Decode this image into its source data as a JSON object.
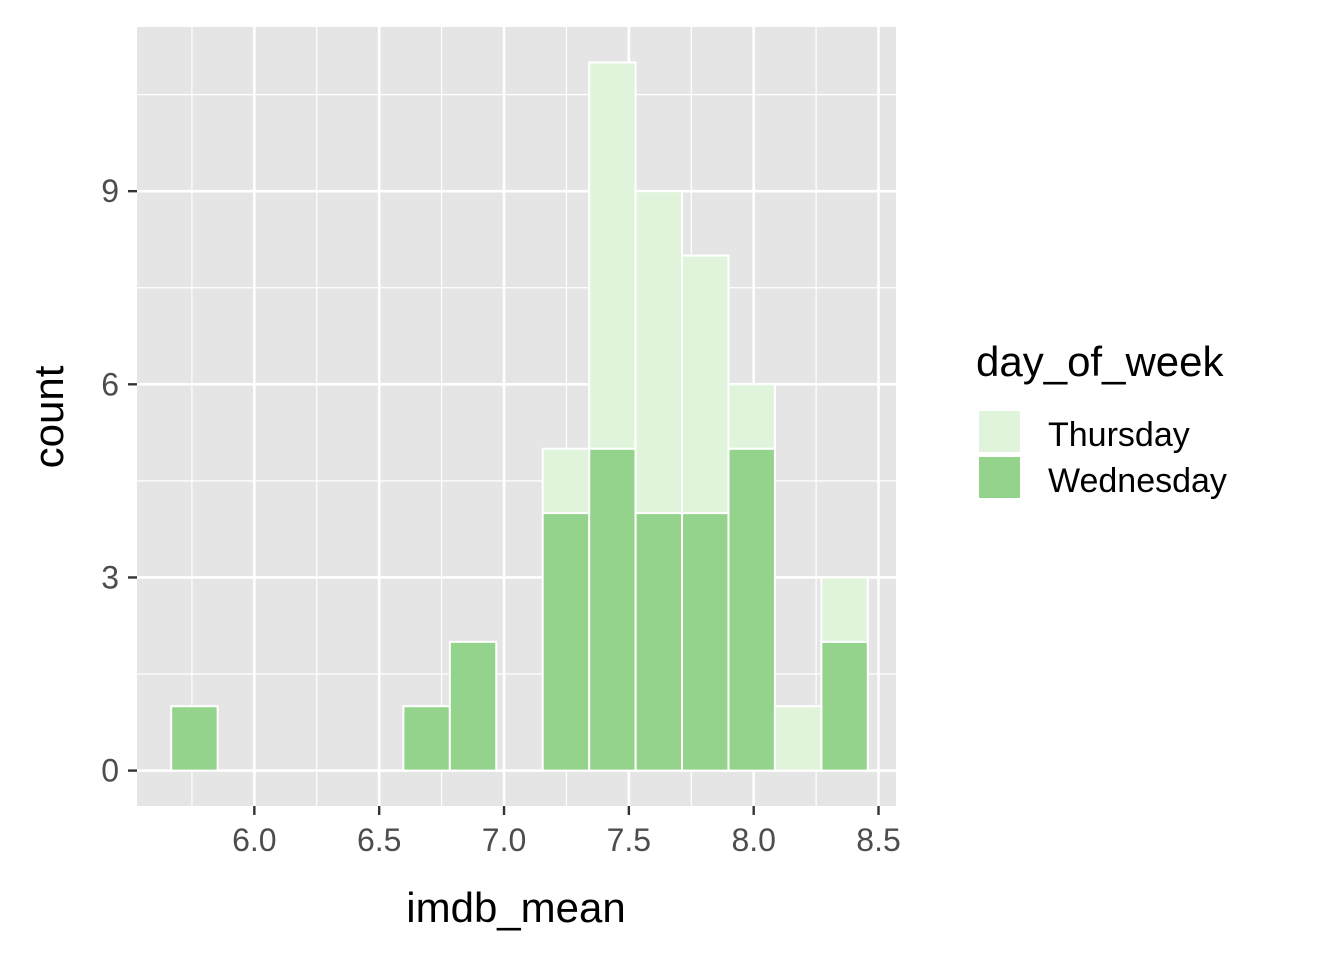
{
  "chart_data": {
    "type": "bar",
    "subtype": "stacked histogram",
    "title": "",
    "xlabel": "imdb_mean",
    "ylabel": "count",
    "xlim": [
      5.53,
      8.57
    ],
    "ylim": [
      -0.55,
      11.55
    ],
    "x_ticks": [
      "6.0",
      "6.5",
      "7.0",
      "7.5",
      "8.0",
      "8.5"
    ],
    "x_tick_values": [
      6.0,
      6.5,
      7.0,
      7.5,
      8.0,
      8.5
    ],
    "y_ticks": [
      "0",
      "3",
      "6",
      "9"
    ],
    "y_tick_values": [
      0,
      3,
      6,
      9
    ],
    "bin_centers": [
      5.76,
      5.946,
      6.132,
      6.318,
      6.504,
      6.69,
      6.876,
      7.062,
      7.248,
      7.434,
      7.62,
      7.806,
      7.992,
      8.178,
      8.364
    ],
    "bin_width": 0.186,
    "series": [
      {
        "name": "Wednesday",
        "color": "#94D38C",
        "values": [
          1,
          0,
          0,
          0,
          0,
          1,
          2,
          0,
          4,
          5,
          4,
          4,
          5,
          0,
          2
        ]
      },
      {
        "name": "Thursday",
        "color": "#DFF4DB",
        "values": [
          0,
          0,
          0,
          0,
          0,
          0,
          0,
          0,
          1,
          6,
          5,
          4,
          1,
          1,
          1
        ]
      }
    ],
    "totals": [
      1,
      0,
      0,
      0,
      0,
      1,
      2,
      0,
      5,
      11,
      9,
      8,
      6,
      1,
      3
    ],
    "stacking_order": "Wednesday bottom, Thursday top",
    "grid": true,
    "panel_background": "#E5E5E5",
    "legend": {
      "title": "day_of_week",
      "position": "right",
      "entries": [
        {
          "label": "Thursday",
          "color": "#DFF4DB"
        },
        {
          "label": "Wednesday",
          "color": "#94D38C"
        }
      ]
    }
  }
}
